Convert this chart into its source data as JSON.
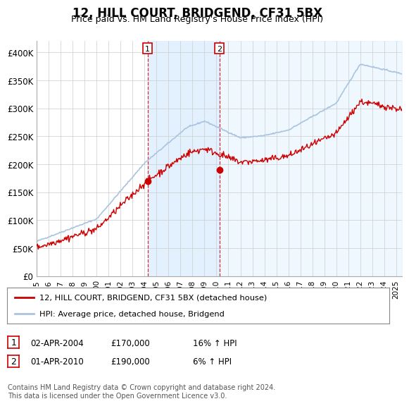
{
  "title": "12, HILL COURT, BRIDGEND, CF31 5BX",
  "subtitle": "Price paid vs. HM Land Registry's House Price Index (HPI)",
  "ylim": [
    0,
    420000
  ],
  "yticks": [
    0,
    50000,
    100000,
    150000,
    200000,
    250000,
    300000,
    350000,
    400000
  ],
  "background_color": "#ffffff",
  "plot_bg_color": "#ffffff",
  "grid_color": "#cccccc",
  "sale1_date": 2004.25,
  "sale1_price": 170000,
  "sale2_date": 2010.25,
  "sale2_price": 190000,
  "hpi_color": "#aac4e0",
  "price_color": "#cc0000",
  "shade_color": "#ddeeff",
  "legend_entry1": "12, HILL COURT, BRIDGEND, CF31 5BX (detached house)",
  "legend_entry2": "HPI: Average price, detached house, Bridgend",
  "table_row1": [
    "1",
    "02-APR-2004",
    "£170,000",
    "16% ↑ HPI"
  ],
  "table_row2": [
    "2",
    "01-APR-2010",
    "£190,000",
    "6% ↑ HPI"
  ],
  "footnote": "Contains HM Land Registry data © Crown copyright and database right 2024.\nThis data is licensed under the Open Government Licence v3.0.",
  "xmin": 1995,
  "xmax": 2025.5
}
